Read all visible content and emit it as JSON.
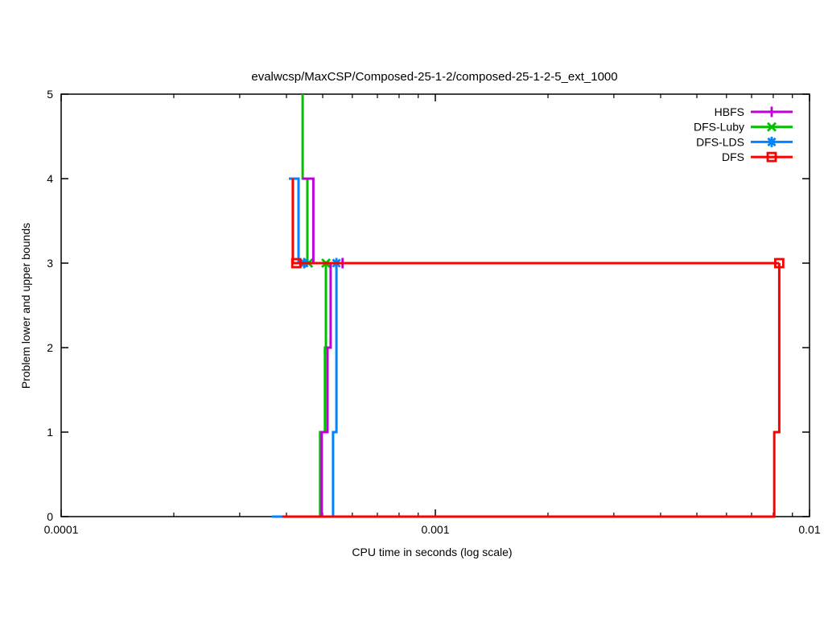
{
  "title": "evalwcsp/MaxCSP/Composed-25-1-2/composed-25-1-2-5_ext_1000",
  "axes": {
    "x": {
      "label": "CPU time in seconds (log scale)",
      "scale": "log",
      "min": 0.0001,
      "max": 0.01,
      "ticks": [
        {
          "v": 0.0001,
          "label": "0.0001"
        },
        {
          "v": 0.001,
          "label": "0.001"
        },
        {
          "v": 0.01,
          "label": "0.01"
        }
      ]
    },
    "y": {
      "label": "Problem lower and upper bounds",
      "min": 0,
      "max": 5,
      "ticks": [
        0,
        1,
        2,
        3,
        4,
        5
      ]
    }
  },
  "legend": {
    "position": "top-right",
    "entries": [
      {
        "label": "HBFS"
      },
      {
        "label": "DFS-Luby"
      },
      {
        "label": "DFS-LDS"
      },
      {
        "label": "DFS"
      }
    ]
  },
  "chart_data": {
    "type": "line",
    "subtype": "step-bounds",
    "title": "evalwcsp/MaxCSP/Composed-25-1-2/composed-25-1-2-5_ext_1000",
    "xlabel": "CPU time in seconds (log scale)",
    "ylabel": "Problem lower and upper bounds",
    "xscale": "log",
    "xlim": [
      0.0001,
      0.01
    ],
    "ylim": [
      0,
      5
    ],
    "grid": false,
    "legend_position": "top-right-inside",
    "series": [
      {
        "name": "DFS-Luby",
        "color": "#00c000",
        "marker": "cross",
        "upper_bound": [
          [
            0.000442,
            5
          ],
          [
            0.000442,
            4
          ],
          [
            0.000455,
            4
          ],
          [
            0.000455,
            3
          ],
          [
            0.00051,
            3
          ]
        ],
        "lower_bound": [
          [
            0.000392,
            0
          ],
          [
            0.000492,
            0
          ],
          [
            0.000492,
            1
          ],
          [
            0.000507,
            1
          ],
          [
            0.000507,
            2
          ],
          [
            0.00051,
            2
          ],
          [
            0.00051,
            3
          ]
        ],
        "markers_at": [
          [
            0.000458,
            3
          ],
          [
            0.00051,
            3
          ]
        ]
      },
      {
        "name": "DFS-LDS",
        "color": "#0084ff",
        "marker": "asterisk",
        "upper_bound": [
          [
            0.000406,
            4
          ],
          [
            0.000431,
            4
          ],
          [
            0.000431,
            3
          ],
          [
            0.000544,
            3
          ]
        ],
        "lower_bound": [
          [
            0.000366,
            0
          ],
          [
            0.000533,
            0
          ],
          [
            0.000533,
            1
          ],
          [
            0.000544,
            1
          ],
          [
            0.000544,
            3
          ]
        ],
        "markers_at": [
          [
            0.000446,
            3
          ],
          [
            0.000544,
            3
          ]
        ]
      },
      {
        "name": "HBFS",
        "color": "#c000d8",
        "marker": "plus",
        "upper_bound": [
          [
            0.000442,
            4
          ],
          [
            0.000472,
            4
          ],
          [
            0.000472,
            3
          ],
          [
            0.000565,
            3
          ]
        ],
        "lower_bound": [
          [
            0.00039,
            0
          ],
          [
            0.000497,
            0
          ],
          [
            0.000497,
            1
          ],
          [
            0.000515,
            1
          ],
          [
            0.000515,
            2
          ],
          [
            0.000525,
            2
          ],
          [
            0.000525,
            3
          ],
          [
            0.000565,
            3
          ]
        ],
        "markers_at": [
          [
            0.000565,
            3
          ]
        ]
      },
      {
        "name": "DFS",
        "color": "#ff0000",
        "marker": "square",
        "upper_bound": [
          [
            0.000416,
            4
          ],
          [
            0.000416,
            3
          ],
          [
            0.0083,
            3
          ]
        ],
        "lower_bound": [
          [
            0.00039,
            0
          ],
          [
            0.00805,
            0
          ],
          [
            0.00805,
            1
          ],
          [
            0.0083,
            1
          ],
          [
            0.0083,
            3
          ]
        ],
        "markers_at": [
          [
            0.000425,
            3
          ],
          [
            0.0083,
            3
          ]
        ]
      }
    ],
    "legend_order": [
      "HBFS",
      "DFS-Luby",
      "DFS-LDS",
      "DFS"
    ]
  }
}
